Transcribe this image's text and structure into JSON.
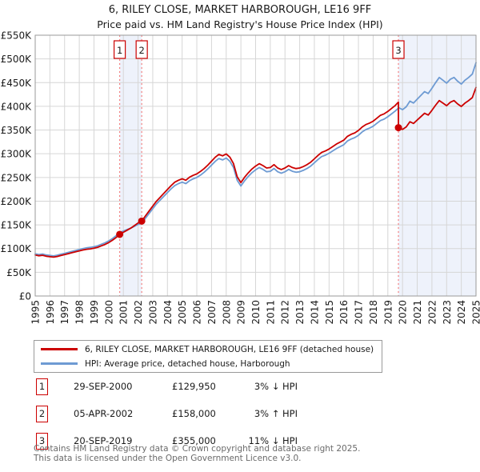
{
  "header": {
    "title": "6, RILEY CLOSE, MARKET HARBOROUGH, LE16 9FF",
    "subtitle": "Price paid vs. HM Land Registry's House Price Index (HPI)"
  },
  "colors": {
    "price_line": "#cc0000",
    "hpi_line": "#6e9bd3",
    "band": "#eef2fb",
    "grid": "#d6d6d6",
    "border": "#9a9a9a",
    "event_dash": "#f47f7f",
    "marker_box_border": "#cc0000",
    "footer_text": "#6a6a6a"
  },
  "chart_data": {
    "type": "line",
    "title": "6, RILEY CLOSE, MARKET HARBOROUGH, LE16 9FF — Price paid vs. HPI",
    "xlabel": "",
    "ylabel": "",
    "x_range": [
      1995,
      2025
    ],
    "ylim": [
      0,
      550
    ],
    "grid": true,
    "legend_position": "below",
    "y_ticks": [
      {
        "v": 0,
        "label": "£0"
      },
      {
        "v": 50,
        "label": "£50K"
      },
      {
        "v": 100,
        "label": "£100K"
      },
      {
        "v": 150,
        "label": "£150K"
      },
      {
        "v": 200,
        "label": "£200K"
      },
      {
        "v": 250,
        "label": "£250K"
      },
      {
        "v": 300,
        "label": "£300K"
      },
      {
        "v": 350,
        "label": "£350K"
      },
      {
        "v": 400,
        "label": "£400K"
      },
      {
        "v": 450,
        "label": "£450K"
      },
      {
        "v": 500,
        "label": "£500K"
      },
      {
        "v": 550,
        "label": "£550K"
      }
    ],
    "x_ticks": [
      "1995",
      "1996",
      "1997",
      "1998",
      "1999",
      "2000",
      "2001",
      "2002",
      "2003",
      "2004",
      "2005",
      "2006",
      "2007",
      "2008",
      "2009",
      "2010",
      "2011",
      "2012",
      "2013",
      "2014",
      "2015",
      "2016",
      "2017",
      "2018",
      "2019",
      "2020",
      "2021",
      "2022",
      "2023",
      "2024",
      "2025"
    ],
    "bands": [
      [
        2000.75,
        2002.25
      ],
      [
        2019.72,
        2025
      ]
    ],
    "events": [
      {
        "n": "1",
        "year": 2000.75
      },
      {
        "n": "2",
        "year": 2002.25
      },
      {
        "n": "3",
        "year": 2019.72
      }
    ],
    "sales": [
      [
        2000.75,
        129.95
      ],
      [
        2002.25,
        158
      ],
      [
        2019.72,
        355
      ]
    ],
    "series": [
      {
        "name": "hpi",
        "label": "HPI: Average price, detached house, Harborough",
        "color": "#6e9bd3",
        "points": [
          [
            1995,
            89
          ],
          [
            1995.25,
            87.5
          ],
          [
            1995.5,
            88.5
          ],
          [
            1995.75,
            86.5
          ],
          [
            1996,
            85.5
          ],
          [
            1996.25,
            84.5
          ],
          [
            1996.5,
            86
          ],
          [
            1996.75,
            88
          ],
          [
            1997,
            90
          ],
          [
            1997.25,
            92
          ],
          [
            1997.5,
            94
          ],
          [
            1997.75,
            96
          ],
          [
            1998,
            98
          ],
          [
            1998.25,
            100
          ],
          [
            1998.5,
            101.5
          ],
          [
            1998.75,
            102.5
          ],
          [
            1999,
            104
          ],
          [
            1999.25,
            106
          ],
          [
            1999.5,
            109
          ],
          [
            1999.75,
            112
          ],
          [
            2000,
            116
          ],
          [
            2000.25,
            121
          ],
          [
            2000.5,
            127
          ],
          [
            2000.75,
            134
          ],
          [
            2001,
            137
          ],
          [
            2001.25,
            140
          ],
          [
            2001.5,
            143
          ],
          [
            2001.75,
            147
          ],
          [
            2002,
            151
          ],
          [
            2002.25,
            153.5
          ],
          [
            2002.5,
            164
          ],
          [
            2002.75,
            174
          ],
          [
            2003,
            184
          ],
          [
            2003.25,
            194
          ],
          [
            2003.5,
            202
          ],
          [
            2003.75,
            210
          ],
          [
            2004,
            218
          ],
          [
            2004.25,
            226
          ],
          [
            2004.5,
            233
          ],
          [
            2004.75,
            237
          ],
          [
            2005,
            240
          ],
          [
            2005.25,
            237
          ],
          [
            2005.5,
            243
          ],
          [
            2005.75,
            247
          ],
          [
            2006,
            250
          ],
          [
            2006.25,
            255
          ],
          [
            2006.5,
            261
          ],
          [
            2006.75,
            268
          ],
          [
            2007,
            276
          ],
          [
            2007.25,
            284
          ],
          [
            2007.5,
            290
          ],
          [
            2007.75,
            287
          ],
          [
            2008,
            291
          ],
          [
            2008.25,
            284
          ],
          [
            2008.5,
            271
          ],
          [
            2008.75,
            244
          ],
          [
            2009,
            232
          ],
          [
            2009.25,
            243
          ],
          [
            2009.5,
            252
          ],
          [
            2009.75,
            260
          ],
          [
            2010,
            266
          ],
          [
            2010.25,
            271
          ],
          [
            2010.5,
            267
          ],
          [
            2010.75,
            262
          ],
          [
            2011,
            263
          ],
          [
            2011.25,
            269
          ],
          [
            2011.5,
            262
          ],
          [
            2011.75,
            259
          ],
          [
            2012,
            262
          ],
          [
            2012.25,
            267
          ],
          [
            2012.5,
            263
          ],
          [
            2012.75,
            261
          ],
          [
            2013,
            262
          ],
          [
            2013.25,
            265
          ],
          [
            2013.5,
            269
          ],
          [
            2013.75,
            274
          ],
          [
            2014,
            281
          ],
          [
            2014.25,
            288
          ],
          [
            2014.5,
            294
          ],
          [
            2014.75,
            297
          ],
          [
            2015,
            301
          ],
          [
            2015.25,
            306
          ],
          [
            2015.5,
            311
          ],
          [
            2015.75,
            315
          ],
          [
            2016,
            319
          ],
          [
            2016.25,
            327
          ],
          [
            2016.5,
            331
          ],
          [
            2016.75,
            334
          ],
          [
            2017,
            339
          ],
          [
            2017.25,
            346
          ],
          [
            2017.5,
            351
          ],
          [
            2017.75,
            354
          ],
          [
            2018,
            358
          ],
          [
            2018.25,
            364
          ],
          [
            2018.5,
            370
          ],
          [
            2018.75,
            373
          ],
          [
            2019,
            378
          ],
          [
            2019.25,
            384
          ],
          [
            2019.5,
            390
          ],
          [
            2019.75,
            397
          ],
          [
            2020,
            393
          ],
          [
            2020.25,
            399
          ],
          [
            2020.5,
            411
          ],
          [
            2020.75,
            407
          ],
          [
            2021,
            415
          ],
          [
            2021.25,
            423
          ],
          [
            2021.5,
            431
          ],
          [
            2021.75,
            427
          ],
          [
            2022,
            438
          ],
          [
            2022.25,
            450
          ],
          [
            2022.5,
            461
          ],
          [
            2022.75,
            455
          ],
          [
            2023,
            449
          ],
          [
            2023.25,
            457
          ],
          [
            2023.5,
            461
          ],
          [
            2023.75,
            453
          ],
          [
            2024,
            447
          ],
          [
            2024.25,
            455
          ],
          [
            2024.5,
            461
          ],
          [
            2024.75,
            468
          ],
          [
            2025,
            492
          ]
        ]
      },
      {
        "name": "price-paid",
        "label": "6, RILEY CLOSE, MARKET HARBOROUGH, LE16 9FF (detached house)",
        "color": "#cc0000",
        "points": [
          [
            1995,
            86.3
          ],
          [
            1995.25,
            84.9
          ],
          [
            1995.5,
            85.8
          ],
          [
            1995.75,
            83.9
          ],
          [
            1996,
            82.9
          ],
          [
            1996.25,
            82
          ],
          [
            1996.5,
            83.4
          ],
          [
            1996.75,
            85.4
          ],
          [
            1997,
            87.3
          ],
          [
            1997.25,
            89.2
          ],
          [
            1997.5,
            91.2
          ],
          [
            1997.75,
            93.1
          ],
          [
            1998,
            95.1
          ],
          [
            1998.25,
            97
          ],
          [
            1998.5,
            98.5
          ],
          [
            1998.75,
            99.4
          ],
          [
            1999,
            100.9
          ],
          [
            1999.25,
            102.8
          ],
          [
            1999.5,
            105.7
          ],
          [
            1999.75,
            108.6
          ],
          [
            2000,
            112.5
          ],
          [
            2000.25,
            117.4
          ],
          [
            2000.5,
            123.2
          ],
          [
            2000.75,
            129.95
          ],
          [
            2001,
            134.3
          ],
          [
            2001.25,
            138.6
          ],
          [
            2001.5,
            143
          ],
          [
            2001.75,
            148.5
          ],
          [
            2002,
            154
          ],
          [
            2002.25,
            158
          ],
          [
            2002.5,
            168.9
          ],
          [
            2002.75,
            179.2
          ],
          [
            2003,
            189.5
          ],
          [
            2003.25,
            199.8
          ],
          [
            2003.5,
            208.1
          ],
          [
            2003.75,
            216.3
          ],
          [
            2004,
            224.5
          ],
          [
            2004.25,
            232.8
          ],
          [
            2004.5,
            240
          ],
          [
            2004.75,
            244.1
          ],
          [
            2005,
            247.2
          ],
          [
            2005.25,
            244.1
          ],
          [
            2005.5,
            250.3
          ],
          [
            2005.75,
            254.4
          ],
          [
            2006,
            257.5
          ],
          [
            2006.25,
            262.7
          ],
          [
            2006.5,
            268.8
          ],
          [
            2006.75,
            276
          ],
          [
            2007,
            284.3
          ],
          [
            2007.25,
            292.5
          ],
          [
            2007.5,
            298.7
          ],
          [
            2007.75,
            295.6
          ],
          [
            2008,
            299.7
          ],
          [
            2008.25,
            292.5
          ],
          [
            2008.5,
            279.1
          ],
          [
            2008.75,
            251.3
          ],
          [
            2009,
            239
          ],
          [
            2009.25,
            250.3
          ],
          [
            2009.5,
            259.6
          ],
          [
            2009.75,
            267.8
          ],
          [
            2010,
            274
          ],
          [
            2010.25,
            279.1
          ],
          [
            2010.5,
            275
          ],
          [
            2010.75,
            269.9
          ],
          [
            2011,
            270.9
          ],
          [
            2011.25,
            277.1
          ],
          [
            2011.5,
            269.9
          ],
          [
            2011.75,
            266.8
          ],
          [
            2012,
            269.9
          ],
          [
            2012.25,
            275
          ],
          [
            2012.5,
            270.9
          ],
          [
            2012.75,
            268.8
          ],
          [
            2013,
            269.9
          ],
          [
            2013.25,
            273
          ],
          [
            2013.5,
            277.1
          ],
          [
            2013.75,
            282.2
          ],
          [
            2014,
            289.4
          ],
          [
            2014.25,
            296.6
          ],
          [
            2014.5,
            302.8
          ],
          [
            2014.75,
            305.9
          ],
          [
            2015,
            310
          ],
          [
            2015.25,
            315.2
          ],
          [
            2015.5,
            320.3
          ],
          [
            2015.75,
            324.5
          ],
          [
            2016,
            328.6
          ],
          [
            2016.25,
            336.8
          ],
          [
            2016.5,
            340.9
          ],
          [
            2016.75,
            344
          ],
          [
            2017,
            349.2
          ],
          [
            2017.25,
            356.4
          ],
          [
            2017.5,
            361.5
          ],
          [
            2017.75,
            364.6
          ],
          [
            2018,
            368.7
          ],
          [
            2018.25,
            374.9
          ],
          [
            2018.5,
            381.1
          ],
          [
            2018.75,
            384.2
          ],
          [
            2019,
            389.3
          ],
          [
            2019.25,
            395.5
          ],
          [
            2019.5,
            401.7
          ],
          [
            2019.72,
            409
          ],
          [
            2019.72,
            355
          ],
          [
            2019.75,
            355
          ],
          [
            2020,
            351.3
          ],
          [
            2020.25,
            356.7
          ],
          [
            2020.5,
            367.4
          ],
          [
            2020.75,
            363.9
          ],
          [
            2021,
            371
          ],
          [
            2021.25,
            378.2
          ],
          [
            2021.5,
            385.3
          ],
          [
            2021.75,
            381.7
          ],
          [
            2022,
            391.6
          ],
          [
            2022.25,
            402.3
          ],
          [
            2022.5,
            412.1
          ],
          [
            2022.75,
            406.8
          ],
          [
            2023,
            401.4
          ],
          [
            2023.25,
            408.6
          ],
          [
            2023.5,
            412.1
          ],
          [
            2023.75,
            405
          ],
          [
            2024,
            399.6
          ],
          [
            2024.25,
            406.8
          ],
          [
            2024.5,
            412.1
          ],
          [
            2024.75,
            418.4
          ],
          [
            2025,
            439.8
          ]
        ]
      }
    ]
  },
  "legend": {
    "entries": [
      {
        "label": "6, RILEY CLOSE, MARKET HARBOROUGH, LE16 9FF (detached house)",
        "color": "#cc0000"
      },
      {
        "label": "HPI: Average price, detached house, Harborough",
        "color": "#6e9bd3"
      }
    ]
  },
  "transactions": [
    {
      "n": "1",
      "date": "29-SEP-2000",
      "price": "£129,950",
      "hpi": "3% ↓ HPI"
    },
    {
      "n": "2",
      "date": "05-APR-2002",
      "price": "£158,000",
      "hpi": "3% ↑ HPI"
    },
    {
      "n": "3",
      "date": "20-SEP-2019",
      "price": "£355,000",
      "hpi": "11% ↓ HPI"
    }
  ],
  "footer": {
    "line1": "Contains HM Land Registry data © Crown copyright and database right 2025.",
    "line2": "This data is licensed under the Open Government Licence v3.0."
  }
}
